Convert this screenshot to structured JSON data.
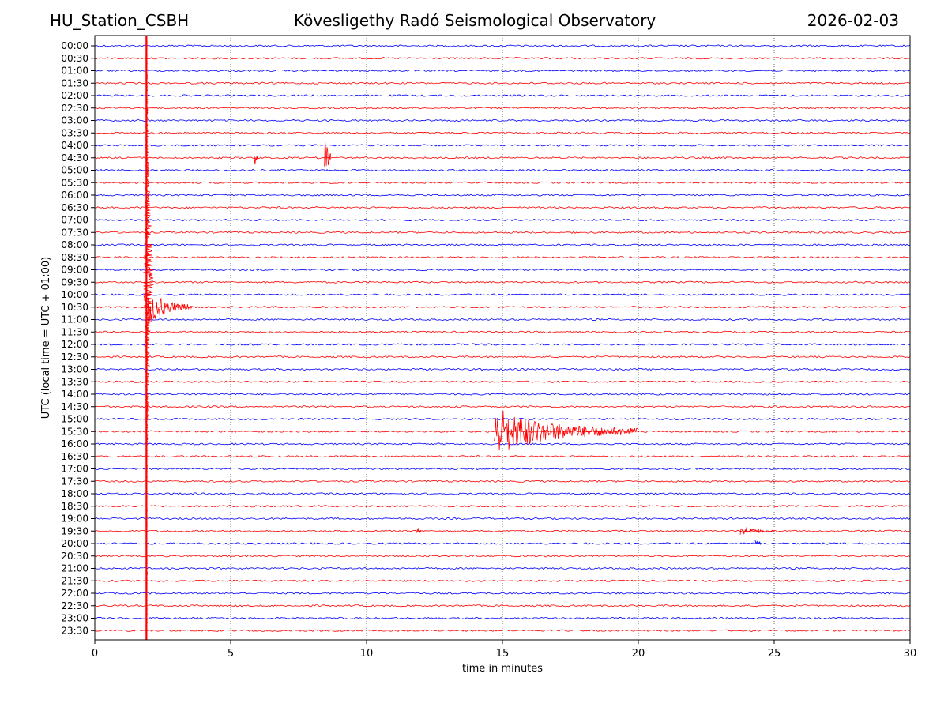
{
  "header": {
    "station": "HU_Station_CSBH",
    "title": "Kövesligethy Radó Seismological Observatory",
    "date": "2026-02-03"
  },
  "chart_data": {
    "type": "line",
    "title": "Kövesligethy Radó Seismological Observatory",
    "xlabel": "time in minutes",
    "ylabel": "UTC (local time = UTC + 01:00)",
    "xlim": [
      0,
      30
    ],
    "xticks": [
      0,
      5,
      10,
      15,
      20,
      25,
      30
    ],
    "grid": "vertical dotted lines at 5-minute intervals",
    "trace_colors": [
      "#0000ff",
      "#ff0000"
    ],
    "row_labels": [
      "00:00",
      "00:30",
      "01:00",
      "01:30",
      "02:00",
      "02:30",
      "03:00",
      "03:30",
      "04:00",
      "04:30",
      "05:00",
      "05:30",
      "06:00",
      "06:30",
      "07:00",
      "07:30",
      "08:00",
      "08:30",
      "09:00",
      "09:30",
      "10:00",
      "10:30",
      "11:00",
      "11:30",
      "12:00",
      "12:30",
      "13:00",
      "13:30",
      "14:00",
      "14:30",
      "15:00",
      "15:30",
      "16:00",
      "16:30",
      "17:00",
      "17:30",
      "18:00",
      "18:30",
      "19:00",
      "19:30",
      "20:00",
      "20:30",
      "21:00",
      "21:30",
      "22:00",
      "22:30",
      "23:00",
      "23:30"
    ],
    "events": [
      {
        "row": "04:30",
        "t_min": 5.85,
        "t_end_min": 6.0,
        "amplitude": 0.9
      },
      {
        "row": "04:30",
        "t_min": 8.45,
        "t_end_min": 8.7,
        "amplitude": 1.5
      },
      {
        "row": "10:30",
        "t_min": 1.95,
        "t_end_min": 3.6,
        "amplitude": 1.0
      },
      {
        "row": "15:30",
        "t_min": 14.7,
        "t_end_min": 20.0,
        "amplitude": 1.3
      },
      {
        "row": "19:30",
        "t_min": 11.85,
        "t_end_min": 12.0,
        "amplitude": 0.35
      },
      {
        "row": "19:30",
        "t_min": 23.75,
        "t_end_min": 25.0,
        "amplitude": 0.35
      },
      {
        "row": "20:00",
        "t_min": 24.3,
        "t_end_min": 24.6,
        "amplitude": 0.3
      }
    ],
    "large_event": {
      "t_min": 1.9,
      "start_row": "00:00",
      "end_row": "23:30"
    }
  }
}
